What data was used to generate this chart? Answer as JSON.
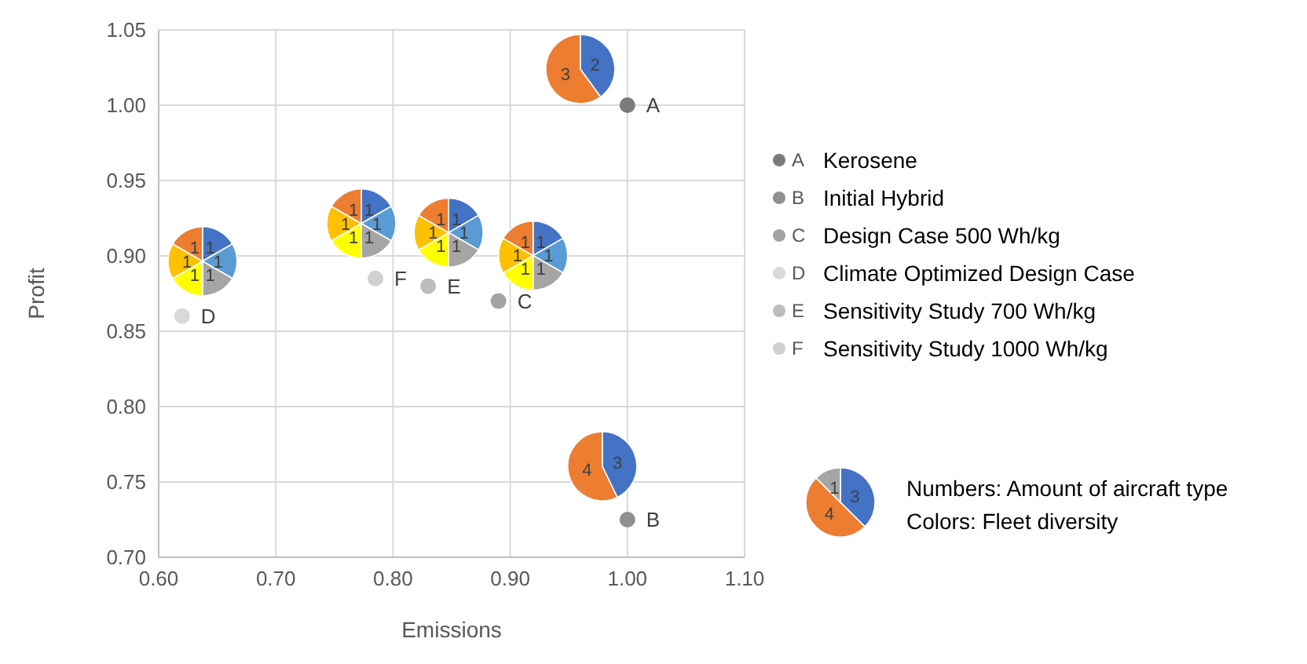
{
  "chart_data": {
    "type": "scatter",
    "xlabel": "Emissions",
    "ylabel": "Profit",
    "xlim": [
      0.6,
      1.1
    ],
    "xticks": [
      {
        "value": 0.6,
        "label": "0.60"
      },
      {
        "value": 0.7,
        "label": "0.70"
      },
      {
        "value": 0.8,
        "label": "0.80"
      },
      {
        "value": 0.9,
        "label": "0.90"
      },
      {
        "value": 1.0,
        "label": "1.00"
      },
      {
        "value": 1.1,
        "label": "1.10"
      }
    ],
    "ylim": [
      0.7,
      1.05
    ],
    "yticks": [
      {
        "value": 0.7,
        "label": "0.70"
      },
      {
        "value": 0.75,
        "label": "0.75"
      },
      {
        "value": 0.8,
        "label": "0.80"
      },
      {
        "value": 0.85,
        "label": "0.85"
      },
      {
        "value": 0.9,
        "label": "0.90"
      },
      {
        "value": 0.95,
        "label": "0.95"
      },
      {
        "value": 1.0,
        "label": "1.00"
      },
      {
        "value": 1.05,
        "label": "1.05"
      }
    ],
    "grid": true,
    "legend": "right",
    "marker": "circle",
    "series": [
      {
        "name": "Kerosene",
        "color": "#7a7a7a",
        "x": [
          1.0
        ],
        "values": [
          1.0
        ],
        "value_labels": [
          "A"
        ]
      },
      {
        "name": "Initial Hybrid",
        "color": "#8f8f8f",
        "x": [
          1.0
        ],
        "values": [
          0.725
        ],
        "value_labels": [
          "B"
        ]
      },
      {
        "name": "Design Case 500 Wh/kg",
        "color": "#a3a3a3",
        "x": [
          0.89
        ],
        "values": [
          0.87
        ],
        "value_labels": [
          "C"
        ]
      },
      {
        "name": "Climate Optimized Design Case",
        "color": "#d9d9d9",
        "x": [
          0.62
        ],
        "values": [
          0.86
        ],
        "value_labels": [
          "D"
        ]
      },
      {
        "name": "Sensitivity Study 700 Wh/kg",
        "color": "#bdbdbd",
        "x": [
          0.83
        ],
        "values": [
          0.88
        ],
        "value_labels": [
          "E"
        ]
      },
      {
        "name": "Sensitivity Study 1000 Wh/kg",
        "color": "#d0d0d0",
        "x": [
          0.785
        ],
        "values": [
          0.885
        ],
        "value_labels": [
          "F"
        ]
      }
    ],
    "annotations": [
      "1",
      "1",
      "1",
      "1",
      "1",
      "1",
      "1",
      "1",
      "1",
      "1",
      "1",
      "1",
      "1",
      "1",
      "1",
      "1",
      "1",
      "1",
      "1",
      "1",
      "1",
      "1",
      "1",
      "1",
      "2",
      "3",
      "3",
      "4",
      "3",
      "4",
      "1",
      "Numbers: Amount of aircraft type",
      "Colors: Fleet diversity"
    ]
  }
}
